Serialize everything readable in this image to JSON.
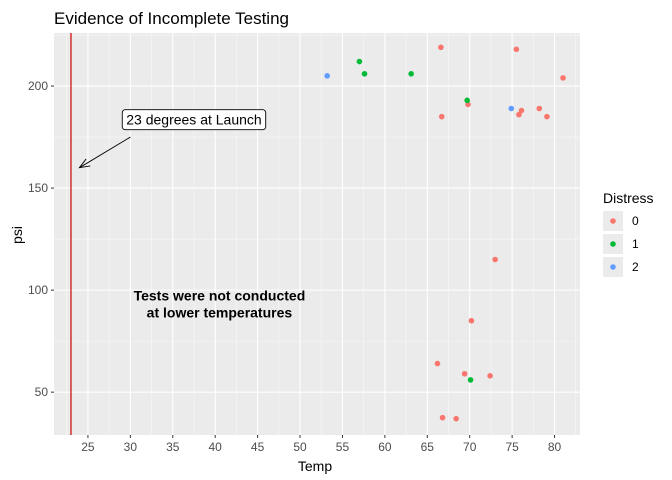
{
  "chart_data": {
    "type": "scatter",
    "title": "Evidence of Incomplete Testing",
    "xlabel": "Temp",
    "ylabel": "psi",
    "xlim": [
      21,
      83
    ],
    "ylim": [
      29,
      226
    ],
    "x_ticks": [
      25,
      30,
      35,
      40,
      45,
      50,
      55,
      60,
      65,
      70,
      75,
      80
    ],
    "y_ticks": [
      50,
      100,
      150,
      200
    ],
    "grid": true,
    "legend": {
      "title": "Distress",
      "position": "right",
      "entries": [
        {
          "label": "0",
          "color": "#F8766D"
        },
        {
          "label": "1",
          "color": "#00BA38"
        },
        {
          "label": "2",
          "color": "#619CFF"
        }
      ]
    },
    "series": [
      {
        "name": "0",
        "color": "#F8766D",
        "points": [
          [
            66.6,
            219
          ],
          [
            75.5,
            218
          ],
          [
            81,
            204
          ],
          [
            78.2,
            189
          ],
          [
            79.1,
            185
          ],
          [
            75.8,
            186
          ],
          [
            76.1,
            188
          ],
          [
            66.7,
            185
          ],
          [
            69.8,
            191
          ],
          [
            73,
            115
          ],
          [
            70.2,
            85
          ],
          [
            66.2,
            64
          ],
          [
            69.4,
            59
          ],
          [
            72.4,
            58
          ],
          [
            66.8,
            37.5
          ],
          [
            68.4,
            37
          ]
        ]
      },
      {
        "name": "1",
        "color": "#00BA38",
        "points": [
          [
            57,
            212
          ],
          [
            57.6,
            206
          ],
          [
            63.1,
            206
          ],
          [
            69.7,
            193
          ],
          [
            70.1,
            56
          ]
        ]
      },
      {
        "name": "2",
        "color": "#619CFF",
        "points": [
          [
            53.2,
            205
          ],
          [
            74.9,
            189
          ]
        ]
      }
    ],
    "reference_line": {
      "x": 23,
      "color": "#cc0000"
    },
    "annotations": [
      {
        "text": "23 degrees at Launch",
        "x": 37.5,
        "y": 183.5,
        "boxed": true
      },
      {
        "text_lines": [
          "Tests were not conducted",
          "at lower temperatures"
        ],
        "x": 40.5,
        "y": 95,
        "bold": true
      }
    ],
    "arrow": {
      "from": [
        30,
        175
      ],
      "to": [
        24,
        160
      ]
    }
  }
}
